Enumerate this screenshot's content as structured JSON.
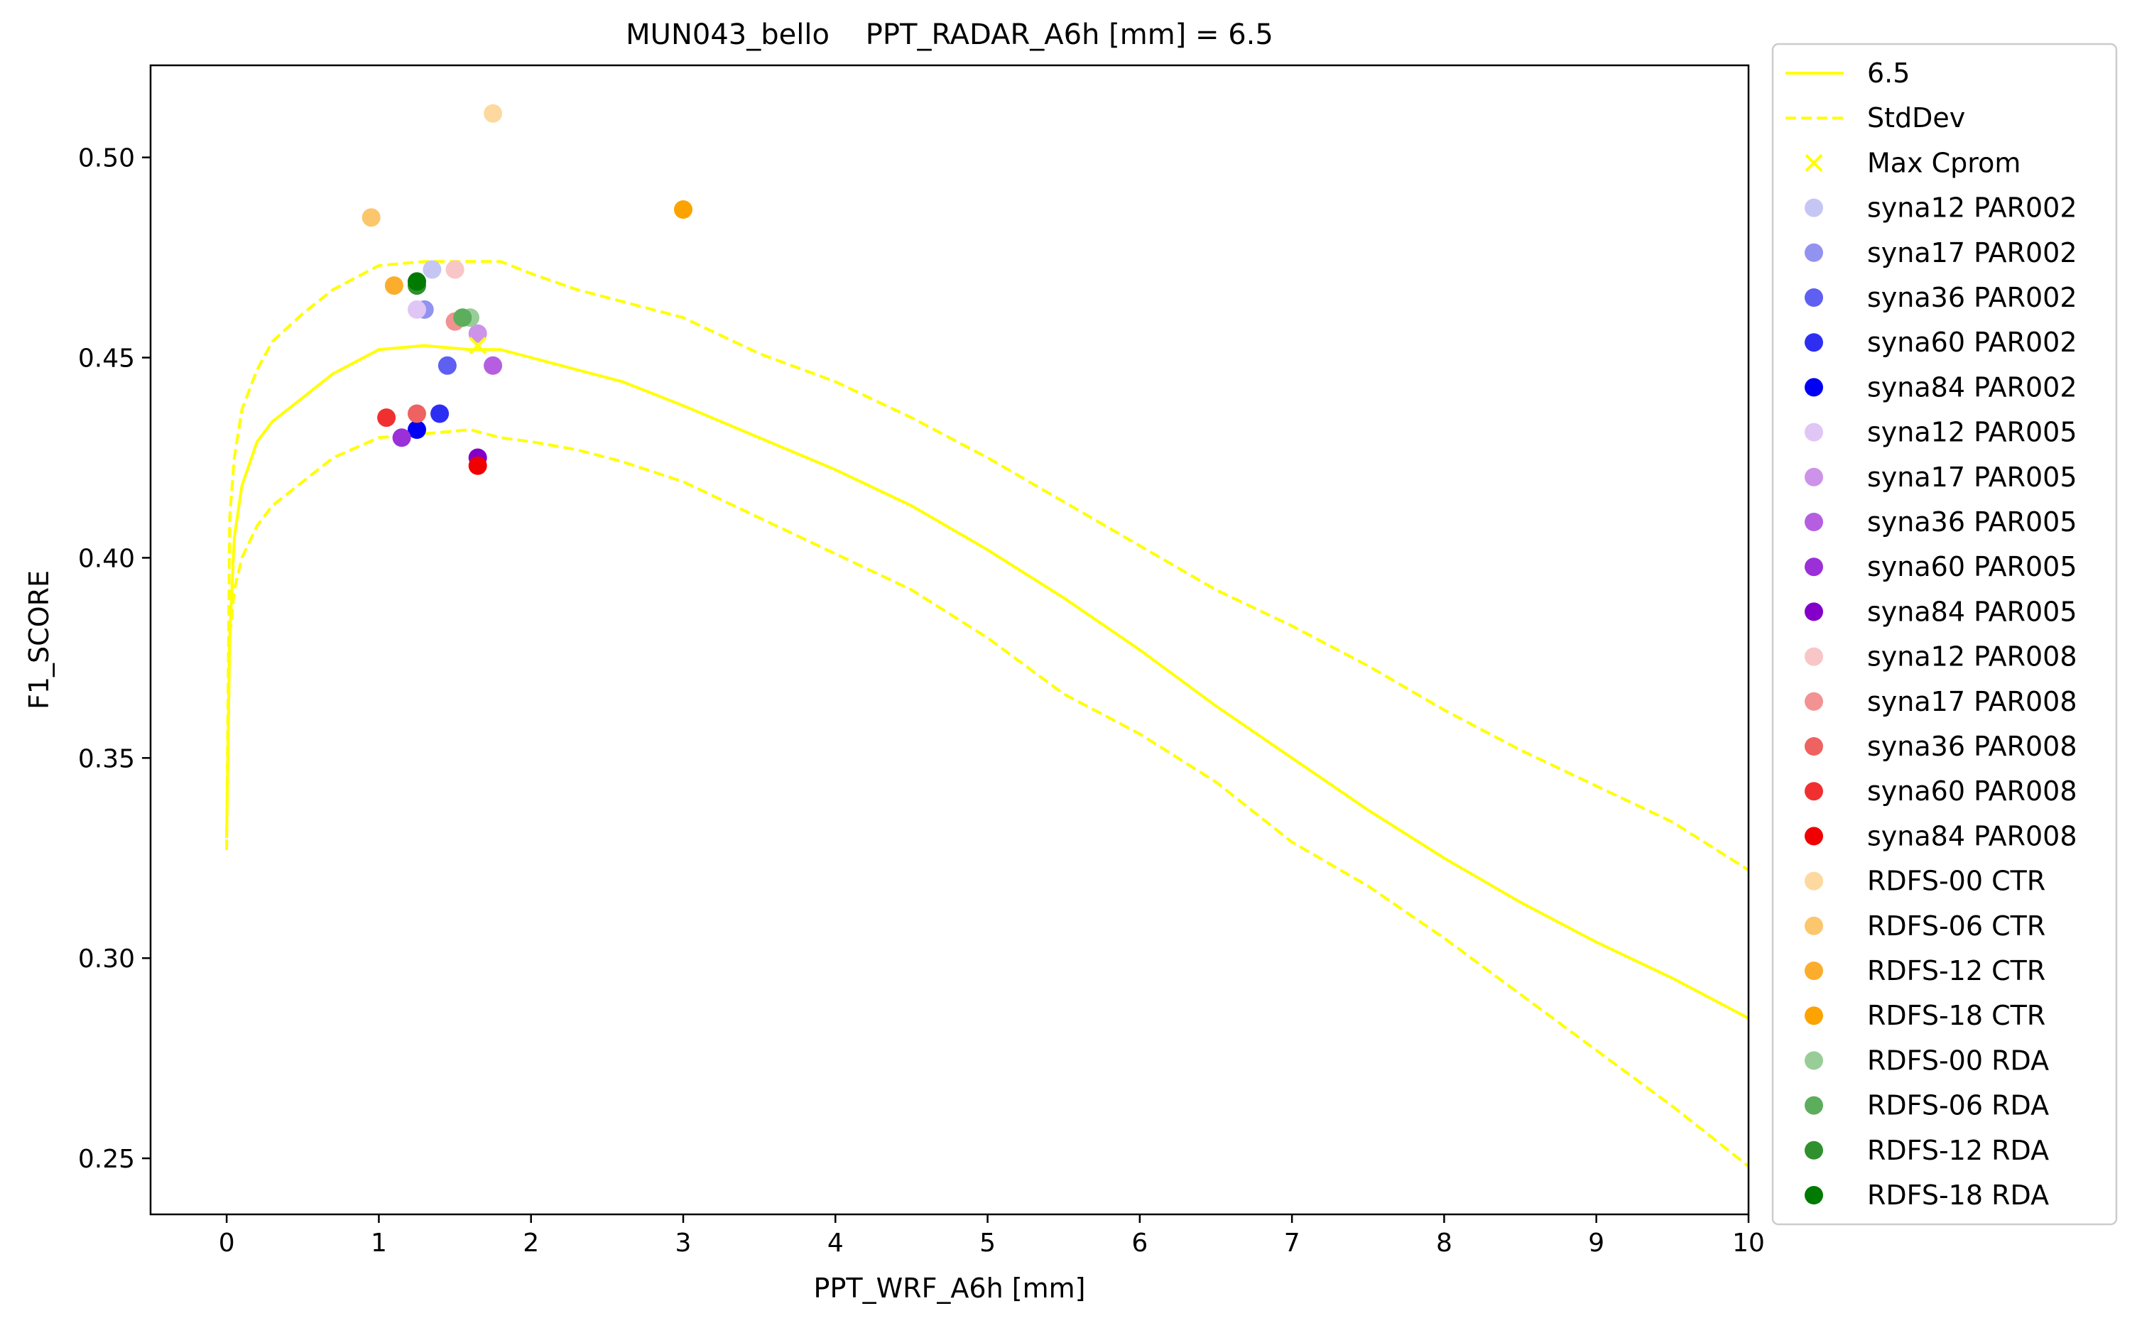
{
  "chart_data": {
    "type": "scatter",
    "title": "MUN043_bello    PPT_RADAR_A6h [mm] = 6.5",
    "xlabel": "PPT_WRF_A6h [mm]",
    "ylabel": "F1_SCORE",
    "xlim": [
      -0.5,
      10
    ],
    "ylim": [
      0.236,
      0.523
    ],
    "xticks": [
      0,
      1,
      2,
      3,
      4,
      5,
      6,
      7,
      8,
      9,
      10
    ],
    "xtick_labels": [
      "0",
      "1",
      "2",
      "3",
      "4",
      "5",
      "6",
      "7",
      "8",
      "9",
      "10"
    ],
    "yticks": [
      0.25,
      0.3,
      0.35,
      0.4,
      0.45,
      0.5
    ],
    "ytick_labels": [
      "0.25",
      "0.30",
      "0.35",
      "0.40",
      "0.45",
      "0.50"
    ],
    "grid": false,
    "legend_position": "outside-right",
    "lines": [
      {
        "name": "6.5",
        "style": "solid",
        "color": "#ffff00",
        "x": [
          0,
          0.02,
          0.05,
          0.1,
          0.2,
          0.3,
          0.5,
          0.7,
          1.0,
          1.3,
          1.6,
          1.8,
          2.0,
          2.3,
          2.6,
          3.0,
          3.5,
          4.0,
          4.5,
          5.0,
          5.5,
          6.0,
          6.5,
          7.0,
          7.5,
          8.0,
          8.5,
          9.0,
          9.5,
          10.0
        ],
        "y": [
          0.33,
          0.38,
          0.405,
          0.418,
          0.429,
          0.434,
          0.44,
          0.446,
          0.452,
          0.453,
          0.452,
          0.452,
          0.45,
          0.447,
          0.444,
          0.438,
          0.43,
          0.422,
          0.413,
          0.402,
          0.39,
          0.377,
          0.363,
          0.35,
          0.337,
          0.325,
          0.314,
          0.304,
          0.295,
          0.285
        ]
      },
      {
        "name": "StdDev",
        "style": "dashed",
        "color": "#ffff00",
        "x": [
          0,
          0.02,
          0.05,
          0.1,
          0.2,
          0.3,
          0.5,
          0.7,
          1.0,
          1.3,
          1.6,
          1.8,
          2.0,
          2.3,
          2.6,
          3.0,
          3.5,
          4.0,
          4.5,
          5.0,
          5.5,
          6.0,
          6.5,
          7.0,
          7.5,
          8.0,
          8.5,
          9.0,
          9.5,
          10.0
        ],
        "y": [
          0.327,
          0.41,
          0.425,
          0.437,
          0.447,
          0.454,
          0.461,
          0.467,
          0.473,
          0.474,
          0.474,
          0.474,
          0.471,
          0.467,
          0.464,
          0.46,
          0.451,
          0.444,
          0.435,
          0.425,
          0.414,
          0.403,
          0.392,
          0.383,
          0.373,
          0.362,
          0.352,
          0.343,
          0.334,
          0.322
        ]
      },
      {
        "name": "",
        "style": "dashed",
        "color": "#ffff00",
        "x": [
          0,
          0.02,
          0.05,
          0.1,
          0.2,
          0.3,
          0.5,
          0.7,
          1.0,
          1.3,
          1.6,
          1.8,
          2.0,
          2.3,
          2.6,
          3.0,
          3.5,
          4.0,
          4.5,
          5.0,
          5.5,
          6.0,
          6.5,
          7.0,
          7.5,
          8.0,
          8.5,
          9.0,
          9.5,
          10.0
        ],
        "y": [
          0.33,
          0.38,
          0.392,
          0.4,
          0.408,
          0.413,
          0.419,
          0.425,
          0.43,
          0.431,
          0.432,
          0.43,
          0.429,
          0.427,
          0.424,
          0.419,
          0.41,
          0.401,
          0.392,
          0.38,
          0.366,
          0.356,
          0.344,
          0.329,
          0.318,
          0.305,
          0.291,
          0.277,
          0.263,
          0.248
        ]
      }
    ],
    "max_marker": {
      "name": "Max Cprom",
      "x": 1.65,
      "y": 0.453,
      "color": "#ffff00"
    },
    "series": [
      {
        "name": "syna12 PAR002",
        "color": "#c6c6f5",
        "x": 1.35,
        "y": 0.472
      },
      {
        "name": "syna17 PAR002",
        "color": "#9292f0",
        "x": 1.3,
        "y": 0.462
      },
      {
        "name": "syna36 PAR002",
        "color": "#5f5ff2",
        "x": 1.45,
        "y": 0.448
      },
      {
        "name": "syna60 PAR002",
        "color": "#2e2ef3",
        "x": 1.4,
        "y": 0.436
      },
      {
        "name": "syna84 PAR002",
        "color": "#0000f5",
        "x": 1.25,
        "y": 0.432
      },
      {
        "name": "syna12 PAR005",
        "color": "#e0c6f5",
        "x": 1.25,
        "y": 0.462
      },
      {
        "name": "syna17 PAR005",
        "color": "#cd92ea",
        "x": 1.65,
        "y": 0.456
      },
      {
        "name": "syna36 PAR005",
        "color": "#b55fe0",
        "x": 1.75,
        "y": 0.448
      },
      {
        "name": "syna60 PAR005",
        "color": "#9b30d8",
        "x": 1.15,
        "y": 0.43
      },
      {
        "name": "syna84 PAR005",
        "color": "#8400c9",
        "x": 1.65,
        "y": 0.425
      },
      {
        "name": "syna12 PAR008",
        "color": "#f8c6c6",
        "x": 1.5,
        "y": 0.472
      },
      {
        "name": "syna17 PAR008",
        "color": "#f29292",
        "x": 1.5,
        "y": 0.459
      },
      {
        "name": "syna36 PAR008",
        "color": "#ee6262",
        "x": 1.25,
        "y": 0.436
      },
      {
        "name": "syna60 PAR008",
        "color": "#f03030",
        "x": 1.05,
        "y": 0.435
      },
      {
        "name": "syna84 PAR008",
        "color": "#f00000",
        "x": 1.65,
        "y": 0.423
      },
      {
        "name": "RDFS-00 CTR",
        "color": "#fdd9a0",
        "x": 1.75,
        "y": 0.511
      },
      {
        "name": "RDFS-06 CTR",
        "color": "#fcc66c",
        "x": 0.95,
        "y": 0.485
      },
      {
        "name": "RDFS-12 CTR",
        "color": "#fcad2c",
        "x": 1.1,
        "y": 0.468
      },
      {
        "name": "RDFS-18 CTR",
        "color": "#fca300",
        "x": 3.0,
        "y": 0.487
      },
      {
        "name": "RDFS-00 RDA",
        "color": "#98cd98",
        "x": 1.6,
        "y": 0.46
      },
      {
        "name": "RDFS-06 RDA",
        "color": "#5cae5c",
        "x": 1.55,
        "y": 0.46
      },
      {
        "name": "RDFS-12 RDA",
        "color": "#2e912e",
        "x": 1.25,
        "y": 0.468
      },
      {
        "name": "RDFS-18 RDA",
        "color": "#007a00",
        "x": 1.25,
        "y": 0.469
      }
    ]
  }
}
